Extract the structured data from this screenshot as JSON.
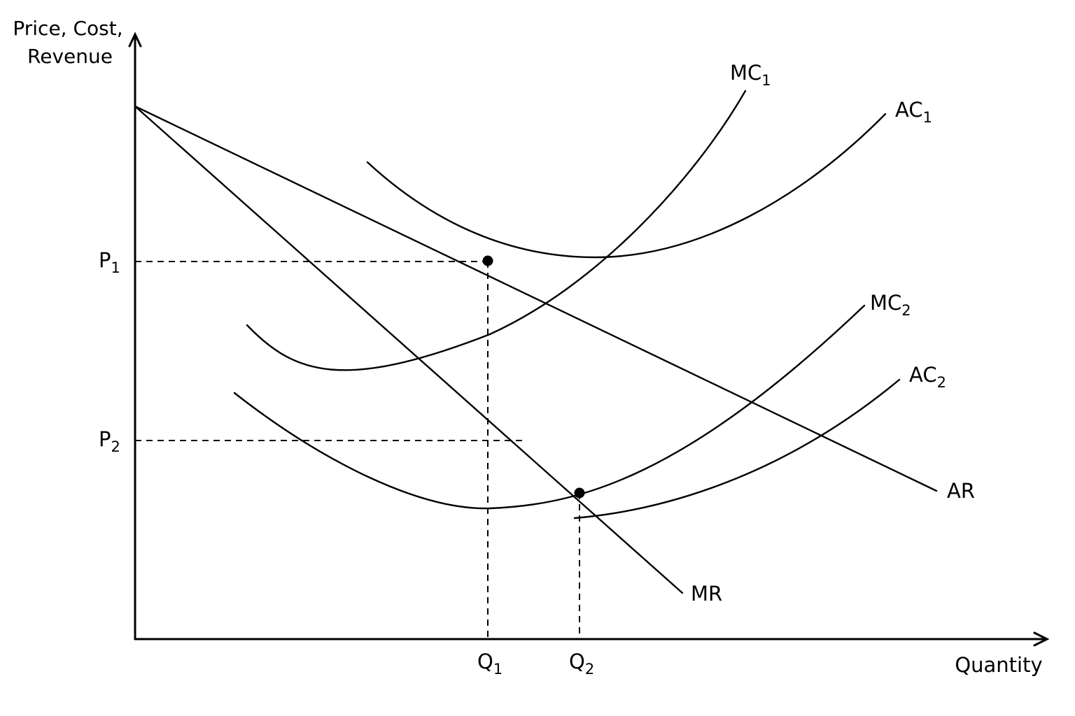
{
  "axes": {
    "y_label_line1": "Price, Cost,",
    "y_label_line2": "Revenue",
    "x_label": "Quantity"
  },
  "curves": {
    "mc1": {
      "main": "MC",
      "sub": "1"
    },
    "ac1": {
      "main": "AC",
      "sub": "1"
    },
    "mc2": {
      "main": "MC",
      "sub": "2"
    },
    "ac2": {
      "main": "AC",
      "sub": "2"
    },
    "ar": {
      "main": "AR"
    },
    "mr": {
      "main": "MR"
    }
  },
  "markers": {
    "p1": {
      "main": "P",
      "sub": "1"
    },
    "p2": {
      "main": "P",
      "sub": "2"
    },
    "q1": {
      "main": "Q",
      "sub": "1"
    },
    "q2": {
      "main": "Q",
      "sub": "2"
    }
  },
  "colors": {
    "ink": "#000000",
    "background": "#ffffff"
  }
}
